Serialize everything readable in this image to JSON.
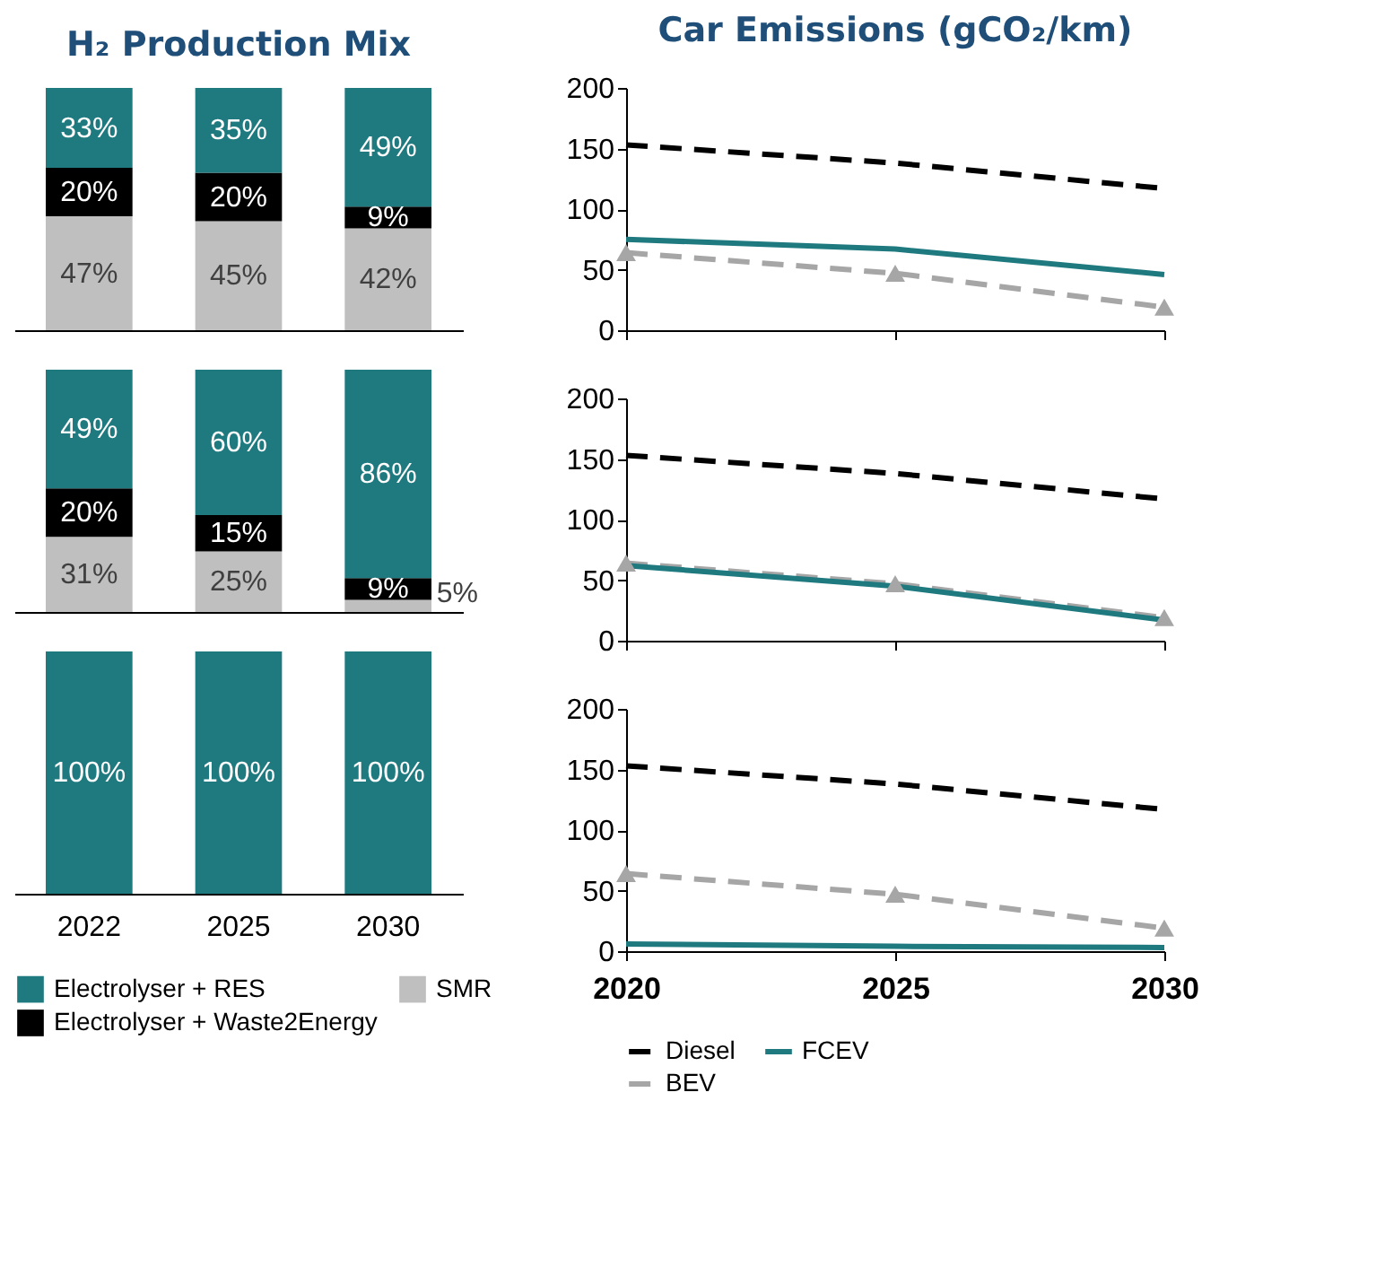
{
  "chart_data": [
    {
      "type": "bar",
      "title": "H₂ Production Mix",
      "stacked": true,
      "tick_labels": false,
      "categories": [
        "2022",
        "2025",
        "2030"
      ],
      "series": [
        {
          "color": "#bfbfbf",
          "values": [
            47,
            45,
            42
          ],
          "value_labels": [
            "47%",
            "45%",
            "42%"
          ]
        },
        {
          "color": "#000000",
          "values": [
            20,
            20,
            9
          ],
          "value_labels": [
            "20%",
            "20%",
            "9%"
          ]
        },
        {
          "color": "#1f7a80",
          "values": [
            33,
            35,
            49
          ],
          "value_labels": [
            "33%",
            "35%",
            "49%"
          ]
        }
      ]
    },
    {
      "type": "line",
      "title": "Car Emissions (gCO₂/km)",
      "tick_labels": "y",
      "x": [
        2020,
        2025,
        2030
      ],
      "xlim": [
        2020,
        2030
      ],
      "xticks": [
        2020,
        2025,
        2030
      ],
      "ylim": [
        0,
        200
      ],
      "yticks": [
        0,
        50,
        100,
        150,
        200
      ],
      "series": [
        {
          "color": "#000000",
          "line_style": "dashed",
          "values": [
            153,
            138,
            117
          ]
        },
        {
          "color": "#1f7a80",
          "line_style": "solid",
          "values": [
            75,
            67,
            46
          ]
        },
        {
          "color": "#a6a6a6",
          "line_style": "dashed",
          "marker": "triangle",
          "values": [
            64,
            47,
            19
          ]
        }
      ]
    },
    {
      "type": "bar",
      "stacked": true,
      "tick_labels": false,
      "categories": [
        "2022",
        "2025",
        "2030"
      ],
      "series": [
        {
          "color": "#bfbfbf",
          "values": [
            31,
            25,
            5
          ],
          "value_labels": [
            "31%",
            "25%",
            "5%"
          ]
        },
        {
          "color": "#000000",
          "values": [
            20,
            15,
            9
          ],
          "value_labels": [
            "20%",
            "15%",
            "9%"
          ]
        },
        {
          "color": "#1f7a80",
          "values": [
            49,
            60,
            86
          ],
          "value_labels": [
            "49%",
            "60%",
            "86%"
          ]
        }
      ]
    },
    {
      "type": "line",
      "tick_labels": "y",
      "x": [
        2020,
        2025,
        2030
      ],
      "xlim": [
        2020,
        2030
      ],
      "xticks": [
        2020,
        2025,
        2030
      ],
      "ylim": [
        0,
        200
      ],
      "yticks": [
        0,
        50,
        100,
        150,
        200
      ],
      "series": [
        {
          "color": "#000000",
          "line_style": "dashed",
          "values": [
            153,
            138,
            117
          ]
        },
        {
          "color": "#a6a6a6",
          "line_style": "dashed",
          "marker": "triangle",
          "values": [
            64,
            47,
            19
          ]
        },
        {
          "color": "#1f7a80",
          "line_style": "solid",
          "values": [
            62,
            45,
            17
          ]
        }
      ]
    },
    {
      "type": "bar",
      "stacked": true,
      "legend": "bottom",
      "categories": [
        "2022",
        "2025",
        "2030"
      ],
      "series": [
        {
          "name": "SMR",
          "color": "#bfbfbf",
          "values": [
            null,
            null,
            null
          ]
        },
        {
          "name": "Electrolyser + Waste2Energy",
          "color": "#000000",
          "values": [
            null,
            null,
            null
          ]
        },
        {
          "name": "Electrolyser + RES",
          "color": "#1f7a80",
          "values": [
            100,
            100,
            100
          ],
          "value_labels": [
            "100%",
            "100%",
            "100%"
          ]
        }
      ]
    },
    {
      "type": "line",
      "legend": "bottom",
      "x": [
        2020,
        2025,
        2030
      ],
      "xlim": [
        2020,
        2030
      ],
      "xticks": [
        2020,
        2025,
        2030
      ],
      "ylim": [
        0,
        200
      ],
      "yticks": [
        0,
        50,
        100,
        150,
        200
      ],
      "series": [
        {
          "name": "Diesel",
          "color": "#000000",
          "line_style": "dashed",
          "values": [
            153,
            138,
            117
          ]
        },
        {
          "name": "FCEV",
          "color": "#1f7a80",
          "line_style": "solid",
          "values": [
            6,
            4,
            3
          ]
        },
        {
          "name": "BEV",
          "color": "#a6a6a6",
          "line_style": "dashed",
          "marker": "triangle",
          "values": [
            64,
            47,
            19
          ]
        }
      ]
    }
  ]
}
